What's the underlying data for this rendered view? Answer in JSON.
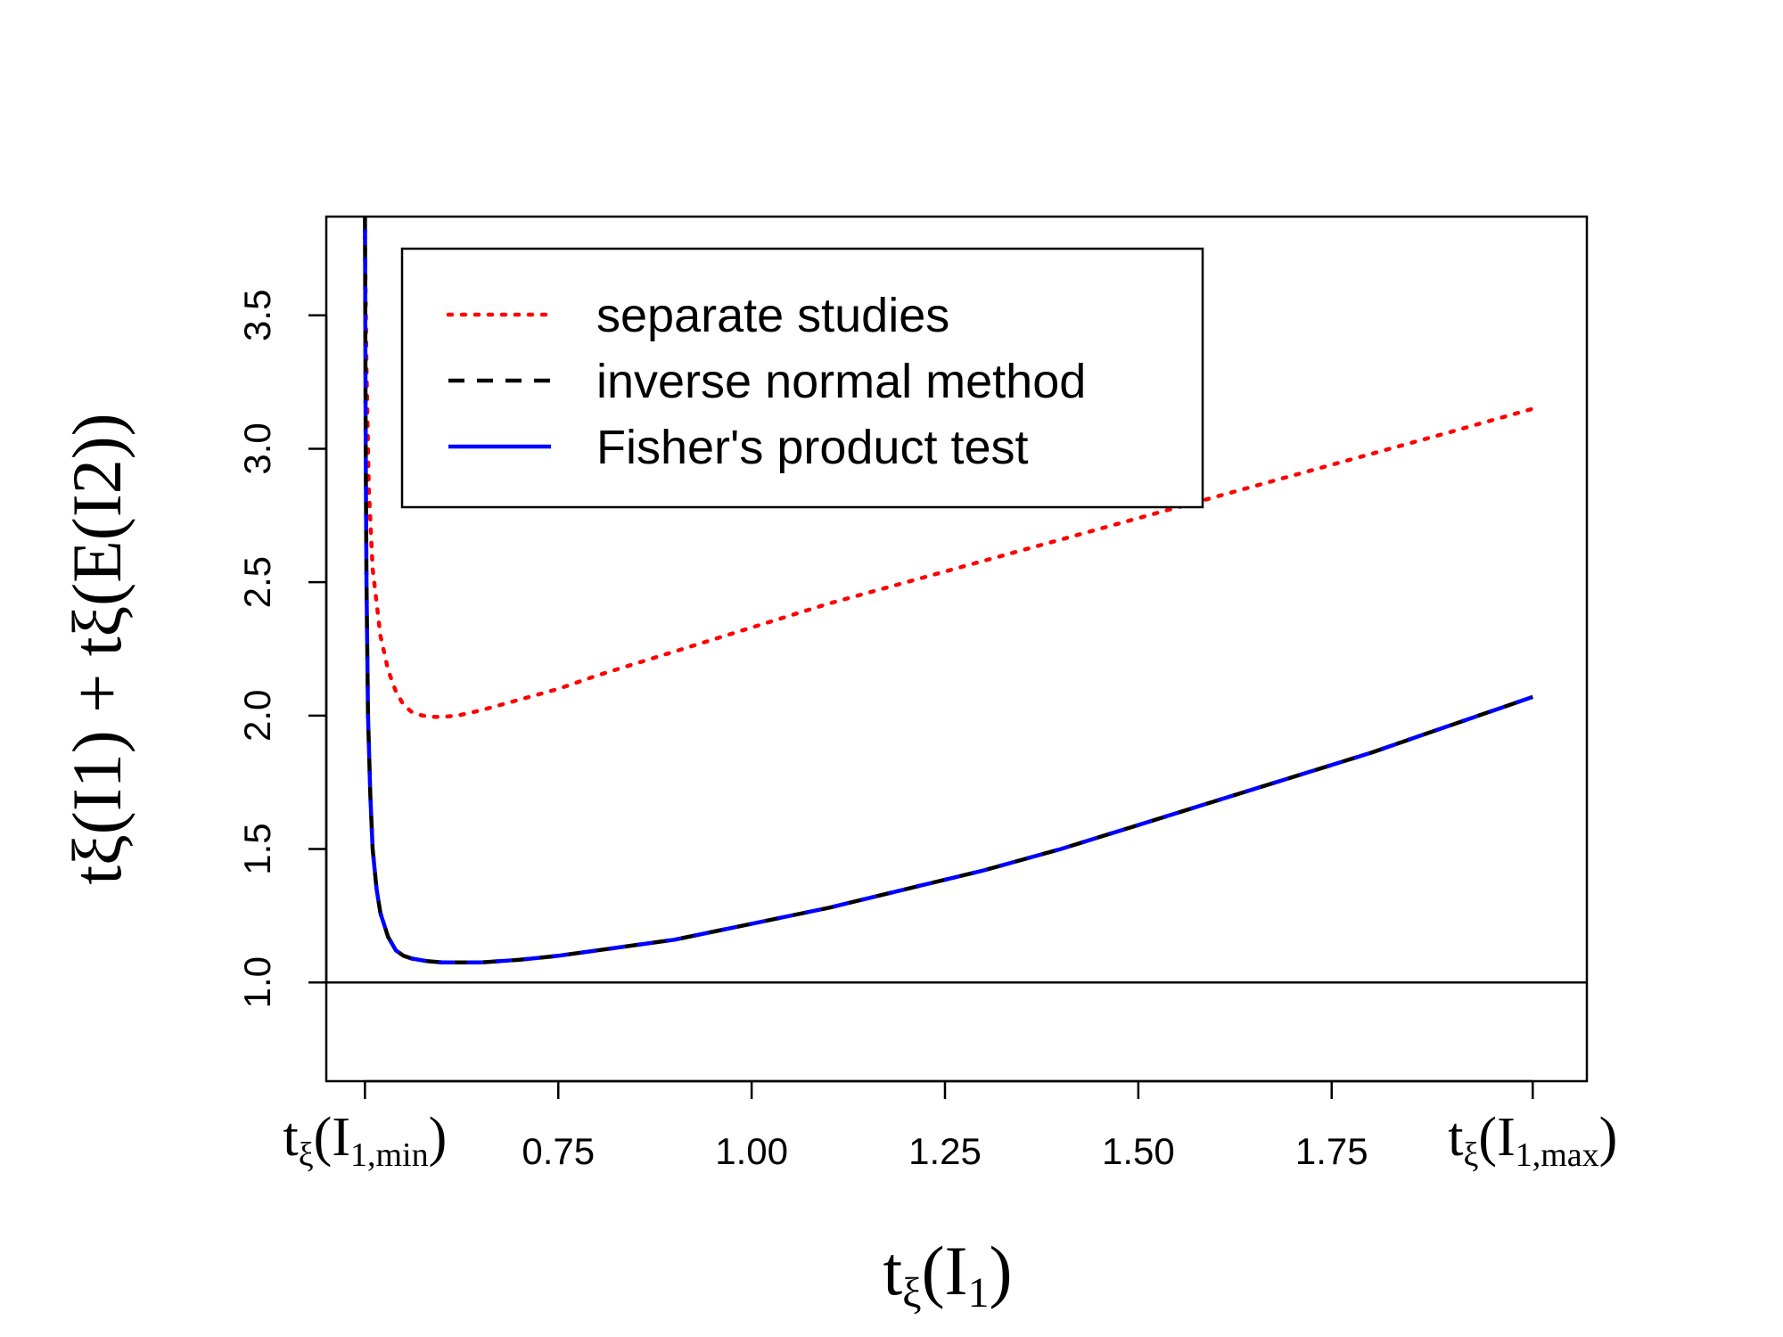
{
  "chart_data": {
    "type": "line",
    "title": "",
    "xlabel": {
      "base": "t",
      "sub": "ξ",
      "paren_open": "(",
      "var": "I",
      "var_sub": "1",
      "paren_close": ")"
    },
    "ylabel": {
      "text": "tξ(I1) + tξ(E(I2))"
    },
    "xlim": [
      0.45,
      2.08
    ],
    "ylim": [
      0.63,
      3.87
    ],
    "grid": false,
    "legend_position": "top-left",
    "x_ticks": [
      0.5,
      0.75,
      1.0,
      1.25,
      1.5,
      1.75,
      2.01
    ],
    "x_tick_labels": [
      "",
      "0.75",
      "1.00",
      "1.25",
      "1.50",
      "1.75",
      ""
    ],
    "x_special_labels": [
      {
        "x": 0.5,
        "sub": "1,min"
      },
      {
        "x": 2.01,
        "sub": "1,max"
      }
    ],
    "y_ticks": [
      1.0,
      1.5,
      2.0,
      2.5,
      3.0,
      3.5
    ],
    "y_tick_labels": [
      "1.0",
      "1.5",
      "2.0",
      "2.5",
      "3.0",
      "3.5"
    ],
    "reference_line": {
      "y": 1.0
    },
    "series": [
      {
        "name": "separate studies",
        "color": "#ff0000",
        "style": "dotted",
        "x": [
          0.5,
          0.502,
          0.505,
          0.51,
          0.52,
          0.53,
          0.54,
          0.55,
          0.56,
          0.57,
          0.58,
          0.59,
          0.6,
          0.62,
          0.65,
          0.7,
          0.75,
          0.8,
          0.9,
          1.0,
          1.1,
          1.2,
          1.3,
          1.4,
          1.5,
          1.6,
          1.7,
          1.8,
          1.9,
          2.01
        ],
        "y": [
          3.8,
          3.3,
          2.85,
          2.55,
          2.3,
          2.17,
          2.09,
          2.04,
          2.015,
          2.003,
          1.997,
          1.995,
          1.995,
          2.0,
          2.02,
          2.06,
          2.1,
          2.15,
          2.24,
          2.33,
          2.42,
          2.5,
          2.58,
          2.66,
          2.74,
          2.82,
          2.9,
          2.98,
          3.06,
          3.15
        ]
      },
      {
        "name": "inverse normal method",
        "color": "#000000",
        "style": "dashed",
        "x": [
          0.5,
          0.501,
          0.502,
          0.504,
          0.507,
          0.51,
          0.515,
          0.52,
          0.53,
          0.54,
          0.55,
          0.56,
          0.58,
          0.6,
          0.65,
          0.7,
          0.75,
          0.8,
          0.9,
          1.0,
          1.1,
          1.2,
          1.3,
          1.4,
          1.5,
          1.6,
          1.7,
          1.8,
          1.9,
          2.01
        ],
        "y": [
          3.87,
          3.0,
          2.5,
          2.0,
          1.7,
          1.5,
          1.35,
          1.26,
          1.17,
          1.12,
          1.1,
          1.09,
          1.08,
          1.075,
          1.075,
          1.085,
          1.1,
          1.12,
          1.16,
          1.22,
          1.28,
          1.35,
          1.42,
          1.5,
          1.59,
          1.68,
          1.77,
          1.86,
          1.96,
          2.07
        ]
      },
      {
        "name": "Fisher's product test",
        "color": "#0000ff",
        "style": "solid",
        "x": [
          0.5,
          0.501,
          0.502,
          0.504,
          0.507,
          0.51,
          0.515,
          0.52,
          0.53,
          0.54,
          0.55,
          0.56,
          0.58,
          0.6,
          0.65,
          0.7,
          0.75,
          0.8,
          0.9,
          1.0,
          1.1,
          1.2,
          1.3,
          1.4,
          1.5,
          1.6,
          1.7,
          1.8,
          1.9,
          2.01
        ],
        "y": [
          3.87,
          3.0,
          2.5,
          2.0,
          1.7,
          1.5,
          1.35,
          1.26,
          1.17,
          1.12,
          1.1,
          1.09,
          1.08,
          1.075,
          1.075,
          1.085,
          1.1,
          1.12,
          1.16,
          1.22,
          1.28,
          1.35,
          1.42,
          1.5,
          1.59,
          1.68,
          1.77,
          1.86,
          1.96,
          2.07
        ]
      }
    ]
  }
}
